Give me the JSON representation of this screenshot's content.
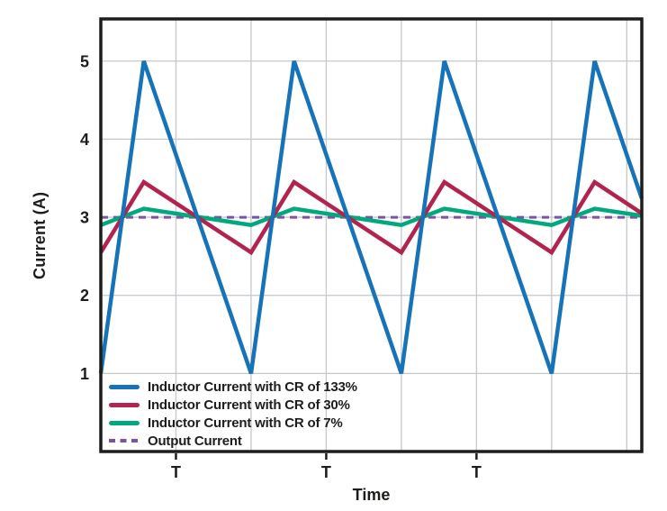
{
  "chart_data": {
    "type": "line",
    "title": "",
    "xlabel": "Time",
    "ylabel": "Current (A)",
    "xlim": [
      0,
      3.6
    ],
    "ylim": [
      0,
      5.54
    ],
    "grid": true,
    "xgrid": [
      0.5,
      1,
      1.5,
      2,
      2.5,
      3,
      3.5
    ],
    "ygrid": [
      1,
      2,
      3,
      4,
      5
    ],
    "xticks": [
      {
        "t": 0.5,
        "label": "T"
      },
      {
        "t": 1.5,
        "label": "T"
      },
      {
        "t": 2.5,
        "label": "T"
      }
    ],
    "yticks": [
      {
        "v": 1,
        "label": "1"
      },
      {
        "v": 2,
        "label": "2"
      },
      {
        "v": 3,
        "label": "3"
      },
      {
        "v": 4,
        "label": "4"
      },
      {
        "v": 5,
        "label": "5"
      }
    ],
    "legend_position": "lower-left-inside",
    "series": [
      {
        "name": "Inductor Current with CR of 133%",
        "color": "#1673B9",
        "style": "solid",
        "points": [
          [
            0,
            1
          ],
          [
            0.286,
            5
          ],
          [
            1,
            1
          ],
          [
            1.286,
            5
          ],
          [
            2,
            1
          ],
          [
            2.286,
            5
          ],
          [
            3,
            1
          ],
          [
            3.286,
            5
          ],
          [
            3.6,
            3.24
          ]
        ]
      },
      {
        "name": "Inductor Current with CR of 30%",
        "color": "#B2234E",
        "style": "solid",
        "points": [
          [
            0,
            2.55
          ],
          [
            0.286,
            3.45
          ],
          [
            1,
            2.55
          ],
          [
            1.286,
            3.45
          ],
          [
            2,
            2.55
          ],
          [
            2.286,
            3.45
          ],
          [
            3,
            2.55
          ],
          [
            3.286,
            3.45
          ],
          [
            3.6,
            3.05
          ]
        ]
      },
      {
        "name": "Inductor Current with CR of 7%",
        "color": "#00A87D",
        "style": "solid",
        "points": [
          [
            0,
            2.9
          ],
          [
            0.286,
            3.11
          ],
          [
            1,
            2.9
          ],
          [
            1.286,
            3.11
          ],
          [
            2,
            2.9
          ],
          [
            2.286,
            3.11
          ],
          [
            3,
            2.9
          ],
          [
            3.286,
            3.11
          ],
          [
            3.6,
            3.02
          ]
        ]
      },
      {
        "name": "Output Current",
        "color": "#7C52A5",
        "style": "dashed",
        "points": [
          [
            0,
            3
          ],
          [
            3.6,
            3
          ]
        ]
      }
    ],
    "colors": {
      "grid": "#C6C7CB",
      "axis": "#1D1D1B",
      "text": "#1D1D1B",
      "background": "#FFFFFF"
    }
  }
}
